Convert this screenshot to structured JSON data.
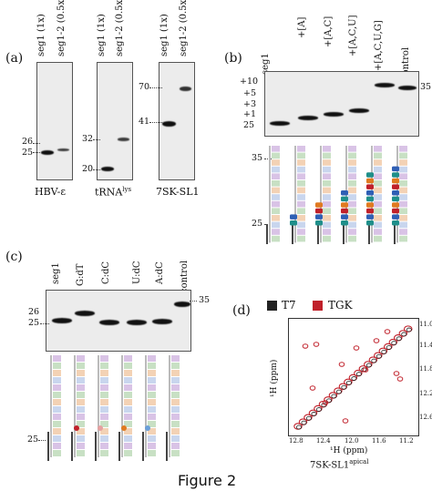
{
  "panel_a": {
    "label": "(a)",
    "groups": [
      {
        "lanes": [
          "seg1 (1x)",
          "seg1-2 (0.5x)"
        ],
        "markers": [
          "26",
          "25"
        ],
        "caption": "HBV-ε"
      },
      {
        "lanes": [
          "seg1 (1x)",
          "seg1-2 (0.5x)"
        ],
        "markers": [
          "32",
          "20"
        ],
        "caption": "tRNA",
        "caption_sup": "lys"
      },
      {
        "lanes": [
          "seg1 (1x)",
          "seg1-2 (0.5x)"
        ],
        "markers": [
          "70",
          "41"
        ],
        "caption": "7SK-SL1"
      }
    ]
  },
  "panel_b": {
    "label": "(b)",
    "lanes": [
      "seg1",
      "+[A]",
      "+[A,C]",
      "+[A,C,U]",
      "+[A,C,U,G]",
      "control"
    ],
    "left_markers": [
      "+10",
      "+5",
      "+3",
      "+1",
      "25"
    ],
    "right_marker": "35",
    "diagram_markers": [
      "35",
      "25"
    ]
  },
  "panel_c": {
    "label": "(c)",
    "lanes": [
      "seg1",
      "G:dT",
      "C:dC",
      "U:dC",
      "A:dC",
      "control"
    ],
    "left_markers": [
      "26",
      "25"
    ],
    "right_marker": "35",
    "diagram_marker": "25"
  },
  "panel_d": {
    "label": "(d)",
    "legend": [
      {
        "name": "T7",
        "color": "#222222"
      },
      {
        "name": "TGK",
        "color": "#c0202a"
      }
    ],
    "y_ticks": [
      "11.0",
      "11.4",
      "11.8",
      "12.2",
      "12.6"
    ],
    "x_ticks": [
      "12.8",
      "12.4",
      "12.0",
      "11.6",
      "11.2"
    ],
    "y_label": "¹H (ppm)",
    "x_label": "¹H (ppm)",
    "caption": "7SK-SL1",
    "caption_sup": "apical"
  },
  "figure_title": "Figure 2"
}
